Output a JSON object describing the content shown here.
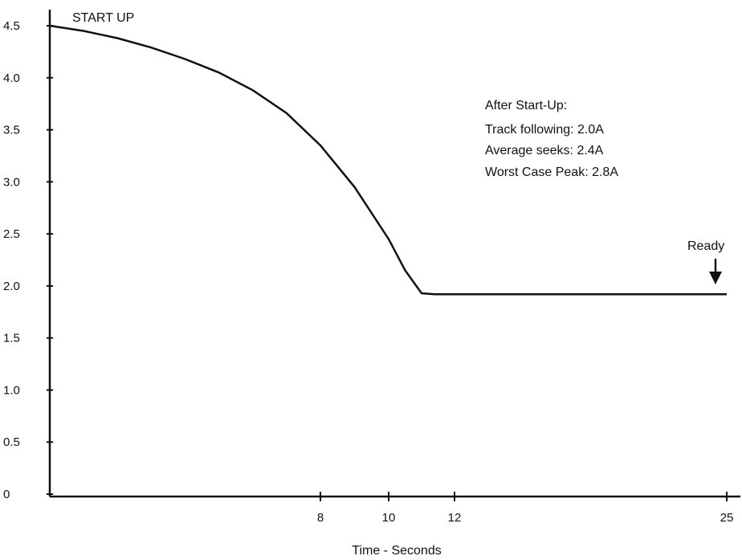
{
  "chart_data": {
    "type": "line",
    "title": "",
    "xlabel": "Time - Seconds",
    "ylabel": "",
    "x_ticks": [
      8,
      10,
      12,
      25
    ],
    "y_ticks": [
      "0",
      "0.5",
      "1.0",
      "1.5",
      "2.0",
      "2.5",
      "3.0",
      "3.5",
      "4.0",
      "4.5"
    ],
    "xlim": [
      0,
      25
    ],
    "ylim": [
      0,
      4.5
    ],
    "grid": false,
    "legend": "none",
    "series": [
      {
        "x": [
          0,
          1,
          2,
          3,
          4,
          5,
          6,
          7,
          8,
          9,
          10,
          10.5,
          11,
          11.4,
          12,
          16,
          20,
          25
        ],
        "values": [
          4.5,
          4.45,
          4.38,
          4.29,
          4.18,
          4.05,
          3.88,
          3.66,
          3.35,
          2.95,
          2.45,
          2.15,
          1.93,
          1.92,
          1.92,
          1.92,
          1.92,
          1.92
        ]
      }
    ],
    "annotations": {
      "start_label": "START UP",
      "ready_label": "Ready",
      "ready_x": 25,
      "info_lines": [
        "After Start-Up:",
        "Track following: 2.0A",
        "Average seeks: 2.4A",
        "Worst Case Peak: 2.8A"
      ]
    }
  }
}
